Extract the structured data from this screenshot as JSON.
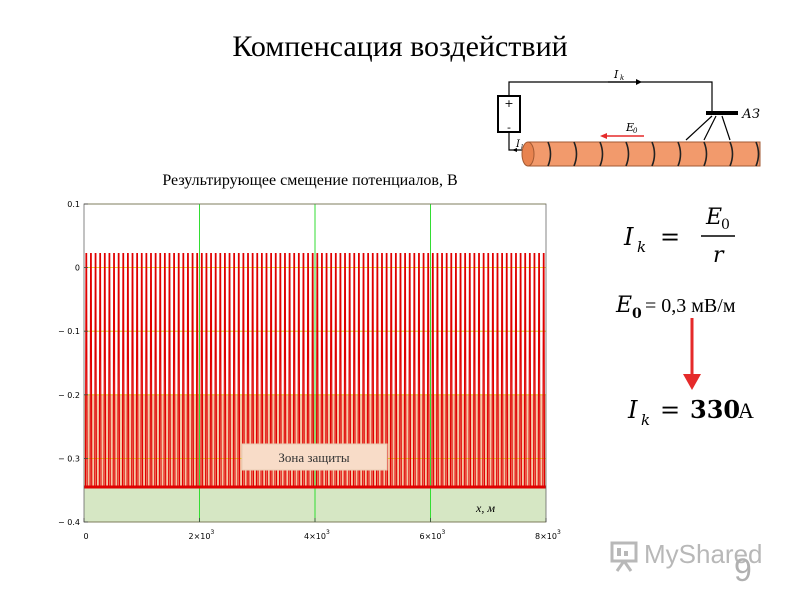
{
  "slide": {
    "title": "Компенсация воздействий",
    "page_number": "9",
    "logo_text": "MyShared"
  },
  "schematic": {
    "current_top_label": "I",
    "current_top_sub": "k",
    "field_label": "E",
    "field_sub": "0",
    "current_bottom_label": "I",
    "current_bottom_sub": "k",
    "anode_label": "АЗ",
    "plus_sign": "+",
    "minus_sign": "-"
  },
  "formulas": {
    "ik_lhs": "I",
    "ik_sub": "k",
    "equals": "=",
    "numerator": "E",
    "numerator_sub": "0",
    "denominator": "r",
    "e0_symbol": "E",
    "e0_sub": "0",
    "e0_value": "= 0,3 мВ/м",
    "result_lhs": "I",
    "result_sub": "k",
    "result_value": "330",
    "result_unit": "А"
  },
  "chart_data": {
    "type": "line",
    "title": "Результирующее смещение потенциалов, В",
    "xlabel": "x, м",
    "ylabel": "",
    "xlim": [
      0,
      8000
    ],
    "ylim": [
      -0.4,
      0.1
    ],
    "x_ticks": [
      0,
      2000,
      4000,
      6000,
      8000
    ],
    "x_tick_labels": [
      "0",
      "2×10",
      "4×10",
      "6×10",
      "8×10"
    ],
    "x_tick_exponent": "3",
    "y_ticks": [
      0.1,
      0,
      -0.1,
      -0.2,
      -0.3,
      -0.4
    ],
    "y_tick_labels": [
      "0.1",
      "0",
      "− 0.1",
      "− 0.2",
      "− 0.3",
      "− 0.4"
    ],
    "series": [
      {
        "color": "#e00000",
        "pattern": "periodic pulses",
        "baseline": -0.345,
        "peak": 0.022,
        "period": 80
      }
    ],
    "protection_zone": {
      "label": "Зона защиты",
      "from": -0.4,
      "to": -0.2,
      "color": "#f5c6a5"
    },
    "bottom_zone": {
      "from": -0.4,
      "to": -0.345,
      "color": "#d6e7c4"
    },
    "vertical_markers": [
      2000,
      4000,
      6000
    ],
    "grid": true,
    "colors": {
      "grid": "#d9c800",
      "markers": "#33dd33",
      "series": "#e00000"
    }
  },
  "arrow_color": "#e52a2a"
}
